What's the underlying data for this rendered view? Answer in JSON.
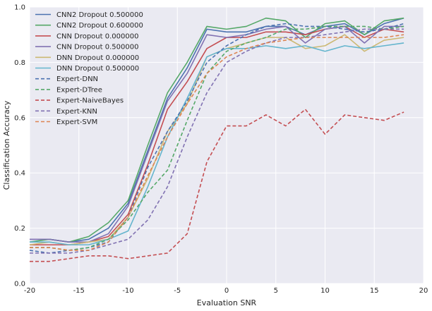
{
  "chart_data": {
    "type": "line",
    "xlabel": "Evaluation SNR",
    "ylabel": "Classification Accuracy",
    "xlim": [
      -20,
      20
    ],
    "ylim": [
      0.0,
      1.0
    ],
    "xticks": [
      "-20",
      "-15",
      "-10",
      "-5",
      "0",
      "5",
      "10",
      "15",
      "20"
    ],
    "yticks": [
      "0.0",
      "0.2",
      "0.4",
      "0.6",
      "0.8",
      "1.0"
    ],
    "grid": true,
    "legend_position": "top-left",
    "x": [
      -20,
      -18,
      -16,
      -14,
      -12,
      -10,
      -8,
      -6,
      -4,
      -2,
      0,
      2,
      4,
      6,
      8,
      10,
      12,
      14,
      16,
      18
    ],
    "series": [
      {
        "name": "CNN2 Dropout 0.500000",
        "color": "#4c72b0",
        "dash": "solid",
        "values": [
          0.16,
          0.16,
          0.15,
          0.16,
          0.2,
          0.29,
          0.48,
          0.67,
          0.78,
          0.92,
          0.91,
          0.91,
          0.93,
          0.93,
          0.9,
          0.93,
          0.94,
          0.9,
          0.94,
          0.96
        ]
      },
      {
        "name": "CNN2 Dropout 0.600000",
        "color": "#55a868",
        "dash": "solid",
        "values": [
          0.15,
          0.16,
          0.15,
          0.17,
          0.22,
          0.3,
          0.5,
          0.69,
          0.8,
          0.93,
          0.92,
          0.93,
          0.96,
          0.95,
          0.89,
          0.94,
          0.95,
          0.9,
          0.95,
          0.96
        ]
      },
      {
        "name": "CNN Dropout 0.000000",
        "color": "#c44e52",
        "dash": "solid",
        "values": [
          0.14,
          0.14,
          0.14,
          0.15,
          0.17,
          0.25,
          0.43,
          0.63,
          0.73,
          0.85,
          0.89,
          0.89,
          0.91,
          0.91,
          0.9,
          0.92,
          0.93,
          0.89,
          0.92,
          0.91
        ]
      },
      {
        "name": "CNN Dropout 0.500000",
        "color": "#8172b2",
        "dash": "solid",
        "values": [
          0.16,
          0.16,
          0.15,
          0.15,
          0.18,
          0.28,
          0.47,
          0.66,
          0.76,
          0.9,
          0.89,
          0.9,
          0.92,
          0.93,
          0.87,
          0.92,
          0.93,
          0.87,
          0.93,
          0.93
        ]
      },
      {
        "name": "DNN Dropout 0.000000",
        "color": "#ccb974",
        "dash": "solid",
        "values": [
          0.14,
          0.15,
          0.14,
          0.15,
          0.16,
          0.24,
          0.38,
          0.55,
          0.65,
          0.82,
          0.85,
          0.87,
          0.89,
          0.89,
          0.85,
          0.86,
          0.9,
          0.84,
          0.88,
          0.89
        ]
      },
      {
        "name": "DNN Dropout 0.500000",
        "color": "#64b5cd",
        "dash": "solid",
        "values": [
          0.15,
          0.15,
          0.14,
          0.14,
          0.16,
          0.19,
          0.35,
          0.53,
          0.67,
          0.82,
          0.85,
          0.85,
          0.86,
          0.85,
          0.86,
          0.84,
          0.86,
          0.85,
          0.86,
          0.87
        ]
      },
      {
        "name": "Expert-DNN",
        "color": "#4c72b0",
        "dash": "dashed",
        "values": [
          0.12,
          0.11,
          0.12,
          0.13,
          0.15,
          0.24,
          0.42,
          0.55,
          0.66,
          0.8,
          0.86,
          0.9,
          0.93,
          0.94,
          0.93,
          0.93,
          0.92,
          0.91,
          0.92,
          0.94
        ]
      },
      {
        "name": "Expert-DTree",
        "color": "#55a868",
        "dash": "dashed",
        "values": [
          0.13,
          0.13,
          0.12,
          0.13,
          0.16,
          0.23,
          0.33,
          0.41,
          0.59,
          0.76,
          0.84,
          0.87,
          0.89,
          0.92,
          0.92,
          0.93,
          0.93,
          0.93,
          0.92,
          0.93
        ]
      },
      {
        "name": "Expert-NaiveBayes",
        "color": "#c44e52",
        "dash": "dashed",
        "values": [
          0.08,
          0.08,
          0.09,
          0.1,
          0.1,
          0.09,
          0.1,
          0.11,
          0.18,
          0.44,
          0.57,
          0.57,
          0.61,
          0.57,
          0.63,
          0.54,
          0.61,
          0.6,
          0.59,
          0.62
        ]
      },
      {
        "name": "Expert-KNN",
        "color": "#8172b2",
        "dash": "dashed",
        "values": [
          0.11,
          0.11,
          0.11,
          0.12,
          0.14,
          0.16,
          0.23,
          0.35,
          0.53,
          0.69,
          0.8,
          0.84,
          0.87,
          0.89,
          0.89,
          0.9,
          0.91,
          0.92,
          0.92,
          0.92
        ]
      },
      {
        "name": "Expert-SVM",
        "color": "#dd8452",
        "dash": "dashed",
        "values": [
          0.13,
          0.13,
          0.12,
          0.12,
          0.15,
          0.24,
          0.39,
          0.53,
          0.65,
          0.76,
          0.82,
          0.85,
          0.87,
          0.88,
          0.89,
          0.89,
          0.89,
          0.89,
          0.89,
          0.9
        ]
      }
    ]
  }
}
